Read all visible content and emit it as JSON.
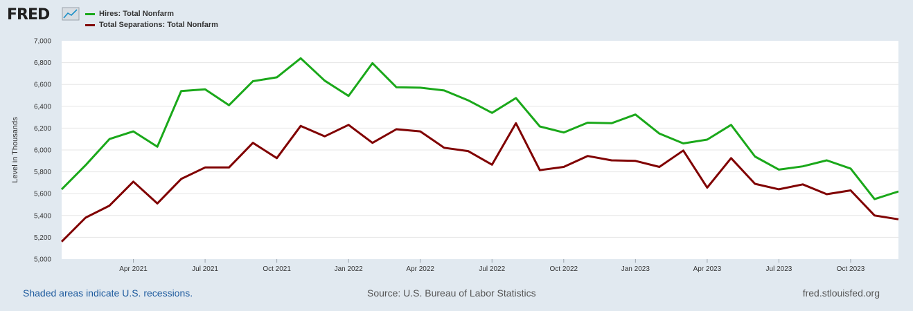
{
  "header": {
    "logo_text": "FRED"
  },
  "colors": {
    "hires": "#1aa81a",
    "separations": "#800000",
    "background": "#e1e9f0",
    "plot_bg": "#ffffff"
  },
  "legend": [
    {
      "label": "Hires: Total Nonfarm",
      "color": "#1aa81a"
    },
    {
      "label": "Total Separations: Total Nonfarm",
      "color": "#800000"
    }
  ],
  "footer": {
    "note": "Shaded areas indicate U.S. recessions.",
    "source": "Source: U.S. Bureau of Labor Statistics",
    "site": "fred.stlouisfed.org"
  },
  "chart_data": {
    "type": "line",
    "ylabel": "Level in Thousands",
    "ylim": [
      5000,
      7000
    ],
    "yticks": [
      "5,000",
      "5,200",
      "5,400",
      "5,600",
      "5,800",
      "6,000",
      "6,200",
      "6,400",
      "6,600",
      "6,800",
      "7,000"
    ],
    "xtick_labels": [
      "Apr 2021",
      "Jul 2021",
      "Oct 2021",
      "Jan 2022",
      "Apr 2022",
      "Jul 2022",
      "Oct 2022",
      "Jan 2023",
      "Apr 2023",
      "Jul 2023",
      "Oct 2023"
    ],
    "xtick_months": [
      "2021-04",
      "2021-07",
      "2021-10",
      "2022-01",
      "2022-04",
      "2022-07",
      "2022-10",
      "2023-01",
      "2023-04",
      "2023-07",
      "2023-10"
    ],
    "x": [
      "2021-01",
      "2021-02",
      "2021-03",
      "2021-04",
      "2021-05",
      "2021-06",
      "2021-07",
      "2021-08",
      "2021-09",
      "2021-10",
      "2021-11",
      "2021-12",
      "2022-01",
      "2022-02",
      "2022-03",
      "2022-04",
      "2022-05",
      "2022-06",
      "2022-07",
      "2022-08",
      "2022-09",
      "2022-10",
      "2022-11",
      "2022-12",
      "2023-01",
      "2023-02",
      "2023-03",
      "2023-04",
      "2023-05",
      "2023-06",
      "2023-07",
      "2023-08",
      "2023-09",
      "2023-10",
      "2023-11",
      "2023-12"
    ],
    "grid": true,
    "series": [
      {
        "name": "Hires: Total Nonfarm",
        "color": "#1aa81a",
        "values": [
          5640,
          5860,
          6100,
          6170,
          6030,
          6540,
          6555,
          6410,
          6630,
          6665,
          6840,
          6635,
          6495,
          6795,
          6575,
          6570,
          6545,
          6455,
          6340,
          6475,
          6215,
          6160,
          6250,
          6245,
          6325,
          6150,
          6060,
          6095,
          6230,
          5940,
          5820,
          5850,
          5905,
          5830,
          5550,
          5620
        ]
      },
      {
        "name": "Total Separations: Total Nonfarm",
        "color": "#800000",
        "values": [
          5160,
          5380,
          5490,
          5710,
          5510,
          5735,
          5840,
          5840,
          6065,
          5925,
          6220,
          6125,
          6230,
          6065,
          6190,
          6170,
          6020,
          5990,
          5865,
          6245,
          5815,
          5845,
          5945,
          5905,
          5900,
          5845,
          5995,
          5655,
          5925,
          5690,
          5640,
          5685,
          5595,
          5630,
          5400,
          5365
        ]
      }
    ]
  }
}
